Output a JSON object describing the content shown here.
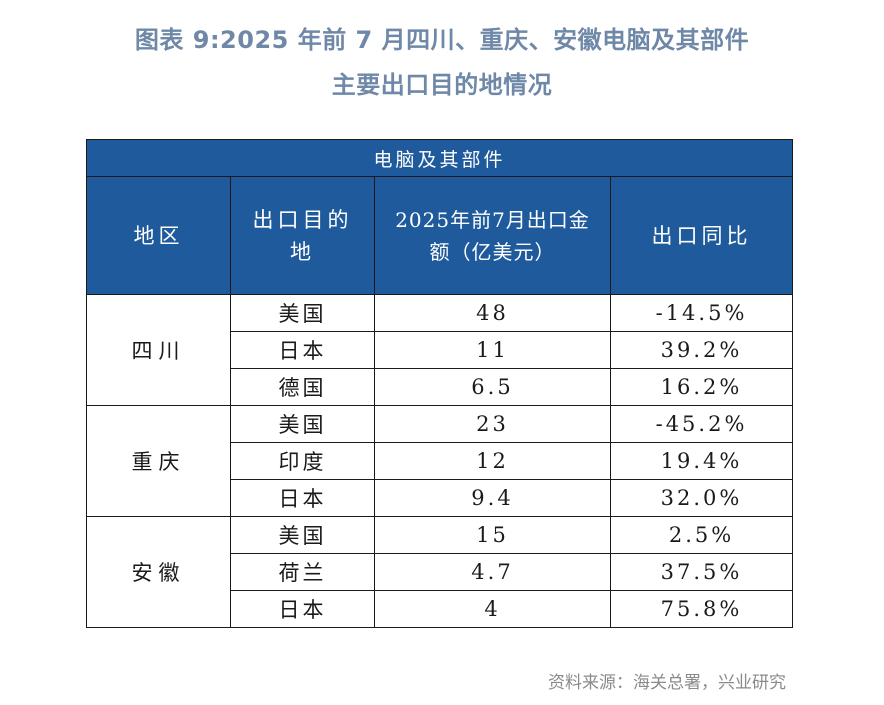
{
  "title": {
    "line1": "图表 9:2025 年前 7 月四川、重庆、安徽电脑及其部件",
    "line2": "主要出口目的地情况"
  },
  "table": {
    "banner": "电脑及其部件",
    "headers": {
      "region": "地区",
      "destination": "出口目的地",
      "amount": "2025年前7月出口金额（亿美元）",
      "yoy": "出口同比"
    },
    "groups": [
      {
        "region": "四川",
        "rows": [
          {
            "destination": "美国",
            "amount": "48",
            "yoy": "-14.5%"
          },
          {
            "destination": "日本",
            "amount": "11",
            "yoy": "39.2%"
          },
          {
            "destination": "德国",
            "amount": "6.5",
            "yoy": "16.2%"
          }
        ]
      },
      {
        "region": "重庆",
        "rows": [
          {
            "destination": "美国",
            "amount": "23",
            "yoy": "-45.2%"
          },
          {
            "destination": "印度",
            "amount": "12",
            "yoy": "19.4%"
          },
          {
            "destination": "日本",
            "amount": "9.4",
            "yoy": "32.0%"
          }
        ]
      },
      {
        "region": "安徽",
        "rows": [
          {
            "destination": "美国",
            "amount": "15",
            "yoy": "2.5%"
          },
          {
            "destination": "荷兰",
            "amount": "4.7",
            "yoy": "37.5%"
          },
          {
            "destination": "日本",
            "amount": "4",
            "yoy": "75.8%"
          }
        ]
      }
    ]
  },
  "source": "资料来源：海关总署，兴业研究",
  "colors": {
    "header_bg": "#1e5a9c",
    "title": "#6f88a8",
    "source": "#8a8a8a"
  }
}
